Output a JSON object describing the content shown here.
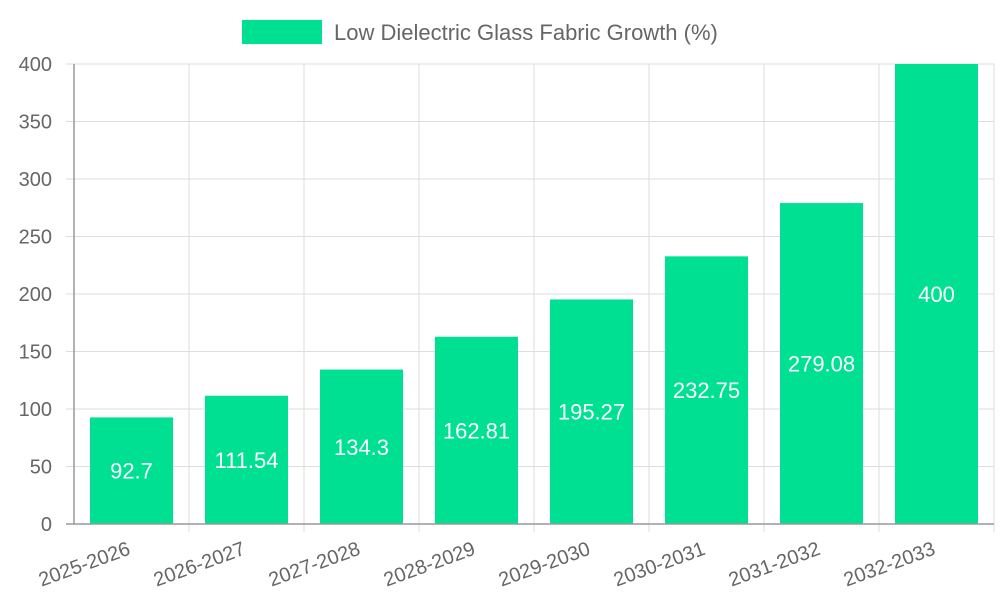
{
  "chart_data": {
    "type": "bar",
    "categories": [
      "2025-2026",
      "2026-2027",
      "2027-2028",
      "2028-2029",
      "2029-2030",
      "2030-2031",
      "2031-2032",
      "2032-2033"
    ],
    "series": [
      {
        "name": "Low Dielectric Glass Fabric Growth (%)",
        "values": [
          92.7,
          111.54,
          134.3,
          162.81,
          195.27,
          232.75,
          279.08,
          400
        ]
      }
    ],
    "data_labels": [
      "92.7",
      "111.54",
      "134.3",
      "162.81",
      "195.27",
      "232.75",
      "279.08",
      "400"
    ],
    "yticks": [
      "0",
      "50",
      "100",
      "150",
      "200",
      "250",
      "300",
      "350",
      "400"
    ],
    "ylim": [
      0,
      400
    ],
    "grid": true,
    "legend_position": "top",
    "colors": {
      "bar": "#00e092",
      "grid": "#dddddd",
      "axis": "#999999",
      "tick_text": "#666666",
      "label_text": "#ffffff"
    }
  }
}
